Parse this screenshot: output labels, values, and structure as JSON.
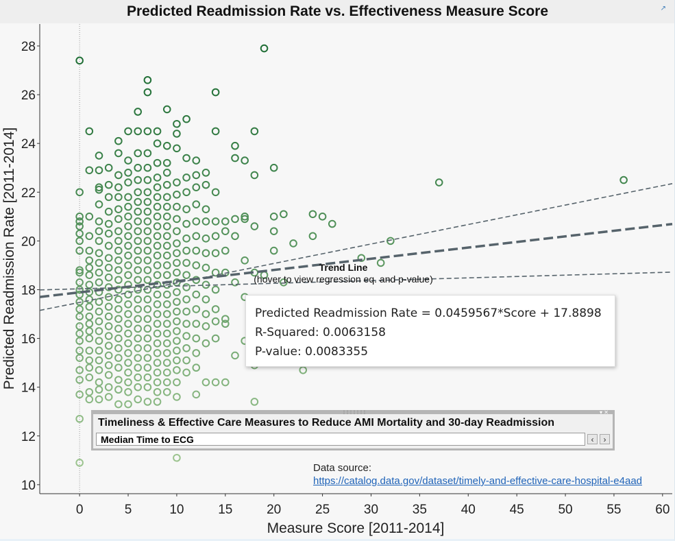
{
  "title": "Predicted Readmission Rate vs. Effectiveness Measure Score",
  "icons": {
    "popout": "popout-icon",
    "prev": "chevron-left-icon",
    "next": "chevron-right-icon"
  },
  "chart_data": {
    "type": "scatter",
    "xlabel": "Measure Score [2011-2014]",
    "ylabel": "Predicted Readmission Rate [2011-2014]",
    "xlim": [
      -4.1,
      61
    ],
    "ylim": [
      9.63,
      28.9
    ],
    "xticks": [
      "0",
      "5",
      "10",
      "15",
      "20",
      "25",
      "30",
      "35",
      "40",
      "45",
      "50",
      "55",
      "60"
    ],
    "yticks": [
      "10",
      "12",
      "14",
      "16",
      "18",
      "20",
      "22",
      "24",
      "26",
      "28"
    ],
    "grid": false,
    "marker": "hollow circle",
    "colors": {
      "dark": "#1f6e35",
      "light": "#9cc48f",
      "trend": "#56636b"
    },
    "points_by_score": {
      "0": [
        27.4,
        22.0,
        21.0,
        20.8,
        20.6,
        20.3,
        20.0,
        19.6,
        18.8,
        18.7,
        18.3,
        18.0,
        17.8,
        17.5,
        17.2,
        16.9,
        16.5,
        16.2,
        15.9,
        15.5,
        15.2,
        14.7,
        14.3,
        13.7,
        12.7,
        10.9
      ],
      "1": [
        24.5,
        22.9,
        21.0,
        20.2,
        19.6,
        19.2,
        18.9,
        18.6,
        18.2,
        17.9,
        17.6,
        17.3,
        16.9,
        16.6,
        16.3,
        16.0,
        15.5,
        15.1,
        14.8,
        14.4,
        13.8,
        13.5
      ],
      "2": [
        23.5,
        22.9,
        22.2,
        22.1,
        21.5,
        20.8,
        20.4,
        20.0,
        19.5,
        19.1,
        18.7,
        18.3,
        17.9,
        17.5,
        17.1,
        16.7,
        16.3,
        15.9,
        15.5,
        15.1,
        14.7,
        14.2,
        13.9,
        13.5
      ],
      "3": [
        23.0,
        22.3,
        21.8,
        21.2,
        20.7,
        20.3,
        19.8,
        19.3,
        18.9,
        18.5,
        18.1,
        17.7,
        17.3,
        16.9,
        16.5,
        16.1,
        15.7,
        15.3,
        14.9,
        14.5,
        14.0,
        13.6
      ],
      "4": [
        24.1,
        23.6,
        22.7,
        22.2,
        21.8,
        21.3,
        20.9,
        20.4,
        20.0,
        19.6,
        19.2,
        18.8,
        18.4,
        18.0,
        17.6,
        17.2,
        16.8,
        16.4,
        16.0,
        15.6,
        15.2,
        14.8,
        14.3,
        13.9,
        13.3
      ],
      "5": [
        24.5,
        23.3,
        22.8,
        22.4,
        21.8,
        21.4,
        21.0,
        20.6,
        20.2,
        19.8,
        19.4,
        19.0,
        18.6,
        18.2,
        17.8,
        17.4,
        17.0,
        16.6,
        16.2,
        15.8,
        15.4,
        15.0,
        14.6,
        14.2,
        13.8,
        13.3
      ],
      "6": [
        25.3,
        24.5,
        23.6,
        23.0,
        22.5,
        22.0,
        21.6,
        21.2,
        20.8,
        20.4,
        20.0,
        19.6,
        19.2,
        18.8,
        18.4,
        18.0,
        17.6,
        17.2,
        16.8,
        16.4,
        16.0,
        15.6,
        15.2,
        14.8,
        14.4,
        14.0,
        13.5
      ],
      "7": [
        26.6,
        26.1,
        24.5,
        23.6,
        23.0,
        22.5,
        22.0,
        21.6,
        21.2,
        20.8,
        20.4,
        20.0,
        19.6,
        19.2,
        18.8,
        18.4,
        18.0,
        17.6,
        17.2,
        16.8,
        16.4,
        16.0,
        15.6,
        15.2,
        14.8,
        14.4,
        14.0,
        13.4
      ],
      "8": [
        24.5,
        24.0,
        23.2,
        22.6,
        22.2,
        21.8,
        21.4,
        21.0,
        20.6,
        20.2,
        19.8,
        19.4,
        19.0,
        18.6,
        18.2,
        17.8,
        17.4,
        17.0,
        16.6,
        16.2,
        15.8,
        15.4,
        15.0,
        14.6,
        14.2,
        13.8,
        13.4
      ],
      "9": [
        25.4,
        23.9,
        23.2,
        22.8,
        22.3,
        21.8,
        21.4,
        21.0,
        20.6,
        20.2,
        19.8,
        19.4,
        19.0,
        18.6,
        18.2,
        17.8,
        17.4,
        17.0,
        16.6,
        16.2,
        15.8,
        15.4,
        15.0,
        14.6,
        14.2,
        13.8
      ],
      "10": [
        24.8,
        24.4,
        23.8,
        22.4,
        21.9,
        21.4,
        20.9,
        20.4,
        19.9,
        19.5,
        19.1,
        18.7,
        18.3,
        17.9,
        17.5,
        17.1,
        16.7,
        16.3,
        15.9,
        15.5,
        15.1,
        14.7,
        14.2,
        13.6,
        11.1
      ],
      "11": [
        25.0,
        23.4,
        22.6,
        22.0,
        21.3,
        20.7,
        20.1,
        19.6,
        19.1,
        18.6,
        18.1,
        17.6,
        17.1,
        16.6,
        16.1,
        15.6,
        15.1,
        14.6
      ],
      "12": [
        23.3,
        22.7,
        22.2,
        21.5,
        20.8,
        20.2,
        19.6,
        19.0,
        18.4,
        17.8,
        17.2,
        16.6,
        16.0,
        15.4,
        14.8,
        13.7
      ],
      "13": [
        22.8,
        22.3,
        21.3,
        20.8,
        20.1,
        19.5,
        18.9,
        18.2,
        17.6,
        17.0,
        16.5,
        15.8,
        14.2
      ],
      "14": [
        26.1,
        24.5,
        22.0,
        20.8,
        20.2,
        19.5,
        18.7,
        18.0,
        17.2,
        16.7,
        16.0,
        14.2
      ],
      "15": [
        20.8,
        20.4,
        19.6,
        18.7,
        16.8,
        16.6,
        14.2
      ],
      "16": [
        23.9,
        23.4,
        20.9,
        20.2,
        18.3,
        15.3
      ],
      "17": [
        23.3,
        21.0,
        20.9,
        19.2,
        17.7,
        15.9
      ],
      "18": [
        24.5,
        22.7,
        20.6,
        18.7,
        16.0,
        14.9,
        13.4
      ],
      "19": [
        27.9,
        18.6,
        17.6
      ],
      "20": [
        23.0,
        21.0,
        20.4,
        19.6
      ],
      "21": [
        21.1,
        18.3
      ],
      "22": [
        19.9
      ],
      "23": [
        14.7
      ],
      "24": [
        21.1,
        20.2
      ],
      "25": [
        21.0
      ],
      "26": [
        20.7
      ],
      "29": [
        19.3
      ],
      "31": [
        19.1
      ],
      "32": [
        20.0
      ],
      "37": [
        22.4
      ],
      "56": [
        22.5
      ]
    },
    "trend": {
      "slope": 0.0459567,
      "intercept": 17.8898,
      "upper_band": [
        [
          -4.1,
          17.15
        ],
        [
          61,
          22.35
        ]
      ],
      "lower_band": [
        [
          -4.1,
          17.99
        ],
        [
          61,
          18.72
        ]
      ],
      "label": "Trend Line",
      "sublabel": "(hover to view regression eq. and p-value)"
    },
    "reference_line_x": 0
  },
  "tooltip": {
    "equation": "Predicted Readmission Rate = 0.0459567*Score + 17.8898",
    "r_squared": "R-Squared: 0.0063158",
    "p_value": "P-value: 0.0083355"
  },
  "filter": {
    "title": "Timeliness & Effective Care Measures to Reduce AMI Mortality and 30-day Readmission",
    "value": "Median Time to ECG",
    "prev": "‹",
    "next": "›"
  },
  "source": {
    "label": "Data source:",
    "url": "https://catalog.data.gov/dataset/timely-and-effective-care-hospital-e4aad"
  }
}
